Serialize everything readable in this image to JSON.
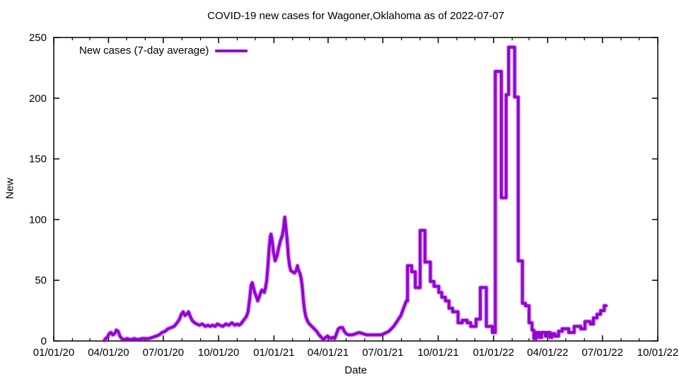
{
  "chart_data": {
    "type": "line",
    "title": "COVID-19 new cases for Wagoner,Oklahoma as of 2022-07-07",
    "xlabel": "Date",
    "ylabel": "New",
    "legend_label": "New cases (7-day average)",
    "legend_position": "top-left-inside",
    "grid": "off",
    "line_color": "#9400D3",
    "axis_color": "#000000",
    "background_color": "#FFFFFF",
    "ylim": [
      0,
      250
    ],
    "yticks": [
      0,
      50,
      100,
      150,
      200,
      250
    ],
    "x_domain_days": [
      0,
      1004
    ],
    "x_epoch": "2020-01-01",
    "xticks": [
      {
        "day": 0,
        "label": "01/01/20"
      },
      {
        "day": 91,
        "label": "04/01/20"
      },
      {
        "day": 182,
        "label": "07/01/20"
      },
      {
        "day": 274,
        "label": "10/01/20"
      },
      {
        "day": 366,
        "label": "01/01/21"
      },
      {
        "day": 456,
        "label": "04/01/21"
      },
      {
        "day": 547,
        "label": "07/01/21"
      },
      {
        "day": 639,
        "label": "10/01/21"
      },
      {
        "day": 731,
        "label": "01/01/22"
      },
      {
        "day": 821,
        "label": "04/01/22"
      },
      {
        "day": 912,
        "label": "07/01/22"
      },
      {
        "day": 1004,
        "label": "10/01/22"
      }
    ],
    "x_minor_ticks_days": [
      31,
      60,
      121,
      152,
      213,
      244,
      305,
      335,
      397,
      425,
      486,
      517,
      578,
      609,
      670,
      700,
      762,
      790,
      851,
      882,
      943,
      973
    ],
    "series": [
      {
        "name": "New cases (7-day average)",
        "color": "#9400D3",
        "points_day_value": [
          [
            84,
            0.5
          ],
          [
            86,
            2
          ],
          [
            89,
            3
          ],
          [
            92,
            6
          ],
          [
            95,
            7
          ],
          [
            98,
            5
          ],
          [
            101,
            6
          ],
          [
            104,
            9
          ],
          [
            107,
            8
          ],
          [
            110,
            4
          ],
          [
            113,
            2
          ],
          [
            117,
            1
          ],
          [
            122,
            2
          ],
          [
            128,
            1
          ],
          [
            134,
            2
          ],
          [
            140,
            1
          ],
          [
            146,
            2
          ],
          [
            152,
            2
          ],
          [
            158,
            2
          ],
          [
            164,
            3
          ],
          [
            170,
            4
          ],
          [
            175,
            5
          ],
          [
            180,
            7
          ],
          [
            185,
            8
          ],
          [
            190,
            10
          ],
          [
            195,
            11
          ],
          [
            200,
            12
          ],
          [
            205,
            15
          ],
          [
            209,
            18
          ],
          [
            212,
            22
          ],
          [
            215,
            24
          ],
          [
            218,
            21
          ],
          [
            221,
            22
          ],
          [
            224,
            24
          ],
          [
            227,
            20
          ],
          [
            230,
            17
          ],
          [
            234,
            15
          ],
          [
            238,
            14
          ],
          [
            242,
            13
          ],
          [
            247,
            14
          ],
          [
            252,
            12
          ],
          [
            256,
            13
          ],
          [
            260,
            12
          ],
          [
            264,
            13
          ],
          [
            268,
            12
          ],
          [
            272,
            14
          ],
          [
            276,
            13
          ],
          [
            281,
            12
          ],
          [
            286,
            14
          ],
          [
            291,
            13
          ],
          [
            296,
            15
          ],
          [
            301,
            13
          ],
          [
            305,
            14
          ],
          [
            308,
            13
          ],
          [
            311,
            14
          ],
          [
            314,
            16
          ],
          [
            317,
            18
          ],
          [
            320,
            20
          ],
          [
            323,
            24
          ],
          [
            326,
            36
          ],
          [
            328,
            46
          ],
          [
            330,
            48
          ],
          [
            332,
            44
          ],
          [
            334,
            40
          ],
          [
            337,
            36
          ],
          [
            339,
            33
          ],
          [
            342,
            37
          ],
          [
            344,
            40
          ],
          [
            346,
            42
          ],
          [
            348,
            41
          ],
          [
            350,
            40
          ],
          [
            352,
            44
          ],
          [
            354,
            50
          ],
          [
            356,
            62
          ],
          [
            358,
            76
          ],
          [
            360,
            86
          ],
          [
            361,
            88
          ],
          [
            363,
            83
          ],
          [
            365,
            74
          ],
          [
            368,
            66
          ],
          [
            371,
            70
          ],
          [
            374,
            77
          ],
          [
            377,
            83
          ],
          [
            380,
            87
          ],
          [
            382,
            93
          ],
          [
            384,
            102
          ],
          [
            386,
            93
          ],
          [
            388,
            83
          ],
          [
            390,
            70
          ],
          [
            392,
            62
          ],
          [
            394,
            58
          ],
          [
            397,
            57
          ],
          [
            400,
            56
          ],
          [
            403,
            58
          ],
          [
            405,
            62
          ],
          [
            407,
            58
          ],
          [
            409,
            56
          ],
          [
            411,
            52
          ],
          [
            413,
            45
          ],
          [
            415,
            33
          ],
          [
            417,
            25
          ],
          [
            419,
            20
          ],
          [
            422,
            16
          ],
          [
            425,
            14
          ],
          [
            429,
            12
          ],
          [
            433,
            10
          ],
          [
            437,
            8
          ],
          [
            441,
            5
          ],
          [
            445,
            3
          ],
          [
            448,
            1
          ],
          [
            452,
            3
          ],
          [
            455,
            4
          ],
          [
            458,
            3
          ],
          [
            461,
            2
          ],
          [
            464,
            3
          ],
          [
            467,
            2
          ],
          [
            470,
            6
          ],
          [
            473,
            10
          ],
          [
            476,
            11
          ],
          [
            480,
            11
          ],
          [
            483,
            8
          ],
          [
            486,
            6
          ],
          [
            490,
            5
          ],
          [
            496,
            5
          ],
          [
            502,
            6
          ],
          [
            508,
            7
          ],
          [
            514,
            6
          ],
          [
            520,
            5
          ],
          [
            526,
            5
          ],
          [
            532,
            5
          ],
          [
            538,
            5
          ],
          [
            544,
            5
          ],
          [
            549,
            6
          ],
          [
            553,
            7
          ],
          [
            557,
            8
          ],
          [
            561,
            10
          ],
          [
            565,
            12
          ],
          [
            569,
            15
          ],
          [
            573,
            18
          ],
          [
            577,
            21
          ],
          [
            580,
            25
          ],
          [
            583,
            29
          ],
          [
            586,
            33
          ],
          [
            588,
            33
          ],
          [
            588,
            62
          ],
          [
            595,
            62
          ],
          [
            595,
            57
          ],
          [
            601,
            57
          ],
          [
            601,
            44
          ],
          [
            609,
            44
          ],
          [
            609,
            91
          ],
          [
            617,
            91
          ],
          [
            617,
            65
          ],
          [
            626,
            65
          ],
          [
            626,
            49
          ],
          [
            632,
            49
          ],
          [
            632,
            45
          ],
          [
            640,
            45
          ],
          [
            640,
            40
          ],
          [
            645,
            40
          ],
          [
            645,
            36
          ],
          [
            651,
            36
          ],
          [
            651,
            33
          ],
          [
            657,
            33
          ],
          [
            657,
            27
          ],
          [
            663,
            27
          ],
          [
            663,
            24
          ],
          [
            672,
            24
          ],
          [
            672,
            15
          ],
          [
            679,
            15
          ],
          [
            679,
            17
          ],
          [
            687,
            17
          ],
          [
            687,
            15
          ],
          [
            693,
            15
          ],
          [
            693,
            12
          ],
          [
            702,
            12
          ],
          [
            702,
            18
          ],
          [
            709,
            18
          ],
          [
            709,
            44
          ],
          [
            719,
            44
          ],
          [
            719,
            12
          ],
          [
            729,
            12
          ],
          [
            729,
            7
          ],
          [
            734,
            7
          ],
          [
            734,
            222
          ],
          [
            744,
            222
          ],
          [
            744,
            118
          ],
          [
            752,
            118
          ],
          [
            752,
            203
          ],
          [
            756,
            203
          ],
          [
            756,
            242
          ],
          [
            766,
            242
          ],
          [
            766,
            201
          ],
          [
            772,
            201
          ],
          [
            772,
            66
          ],
          [
            779,
            66
          ],
          [
            779,
            31
          ],
          [
            784,
            31
          ],
          [
            784,
            29
          ],
          [
            790,
            29
          ],
          [
            790,
            15
          ],
          [
            795,
            15
          ],
          [
            795,
            9
          ],
          [
            798,
            9
          ],
          [
            798,
            2
          ],
          [
            802,
            2
          ],
          [
            802,
            7
          ],
          [
            807,
            7
          ],
          [
            807,
            3
          ],
          [
            811,
            3
          ],
          [
            811,
            7
          ],
          [
            817,
            7
          ],
          [
            817,
            4
          ],
          [
            820,
            4
          ],
          [
            820,
            7
          ],
          [
            825,
            7
          ],
          [
            825,
            3
          ],
          [
            828,
            3
          ],
          [
            828,
            6
          ],
          [
            833,
            6
          ],
          [
            833,
            4
          ],
          [
            839,
            4
          ],
          [
            839,
            8
          ],
          [
            845,
            8
          ],
          [
            845,
            10
          ],
          [
            856,
            10
          ],
          [
            856,
            7
          ],
          [
            865,
            7
          ],
          [
            865,
            12
          ],
          [
            876,
            12
          ],
          [
            876,
            10
          ],
          [
            883,
            10
          ],
          [
            883,
            16
          ],
          [
            892,
            16
          ],
          [
            892,
            14
          ],
          [
            897,
            14
          ],
          [
            897,
            19
          ],
          [
            903,
            19
          ],
          [
            903,
            22
          ],
          [
            909,
            22
          ],
          [
            909,
            25
          ],
          [
            915,
            25
          ],
          [
            915,
            29
          ],
          [
            918,
            29
          ]
        ]
      }
    ]
  }
}
